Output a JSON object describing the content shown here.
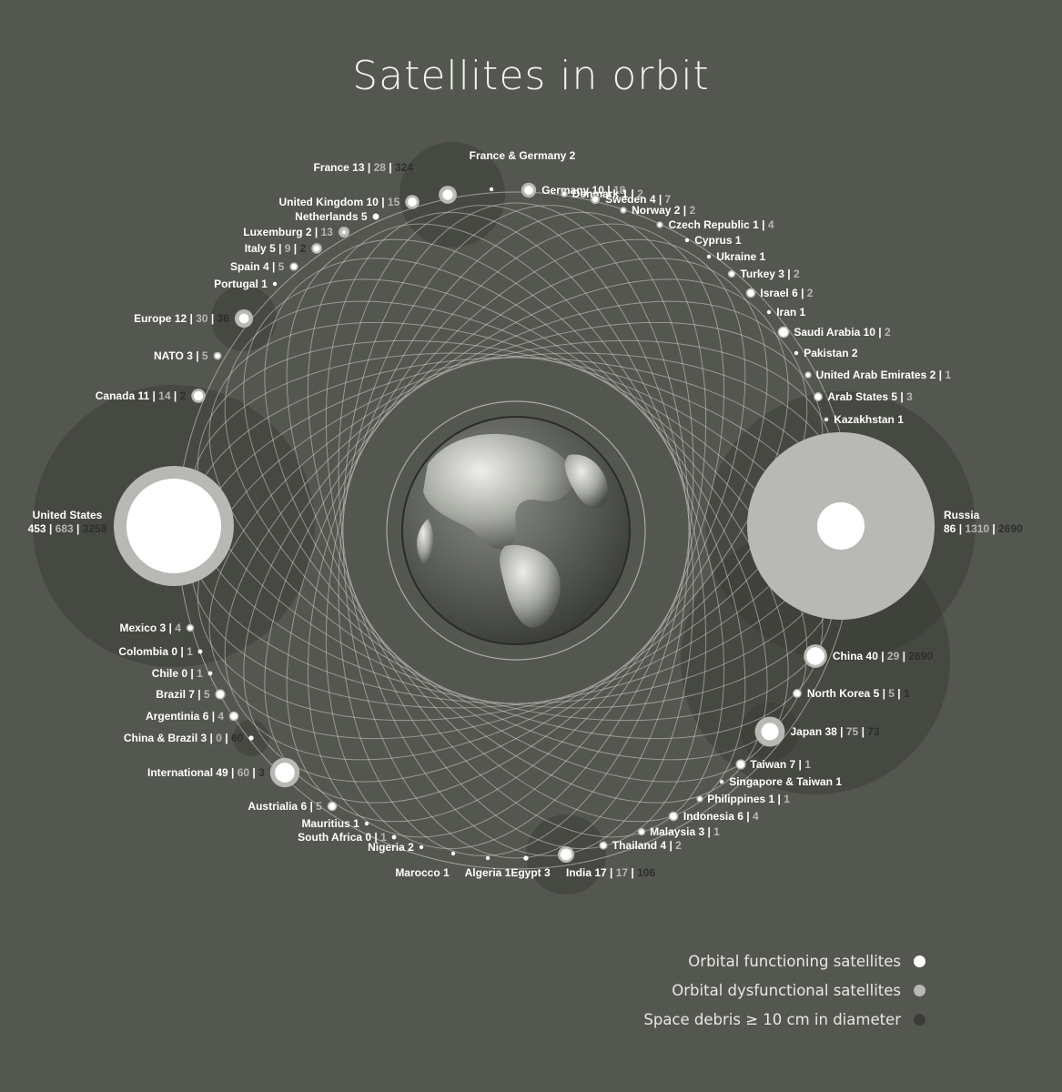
{
  "title": "Satellites in orbit",
  "legend": {
    "items": [
      {
        "label": "Orbital functioning satellites",
        "color": "#ffffff"
      },
      {
        "label": "Orbital dysfunctional satellites",
        "color": "#b8b8b4"
      },
      {
        "label": "Space debris ≥ 10 cm in diameter",
        "color": "#3a3c36"
      }
    ]
  },
  "chart_data": {
    "type": "bubble",
    "title": "Satellites in orbit",
    "center_icon": "globe-earth",
    "series": [
      {
        "name": "Orbital functioning satellites",
        "color": "#ffffff"
      },
      {
        "name": "Orbital dysfunctional satellites",
        "color": "#b8b8b4"
      },
      {
        "name": "Space debris ≥ 10 cm in diameter",
        "color": "#3a3c36"
      }
    ],
    "countries": [
      {
        "name": "France & Germany",
        "functioning": 2
      },
      {
        "name": "France",
        "functioning": 13,
        "dysfunctional": 28,
        "debris": 324
      },
      {
        "name": "Germany",
        "functioning": 10,
        "dysfunctional": 18
      },
      {
        "name": "Denmark",
        "functioning": 1,
        "dysfunctional": 2
      },
      {
        "name": "Sweden",
        "functioning": 4,
        "dysfunctional": 7
      },
      {
        "name": "Norway",
        "functioning": 2,
        "dysfunctional": 2
      },
      {
        "name": "Czech Republic",
        "functioning": 1,
        "dysfunctional": 4
      },
      {
        "name": "Cyprus",
        "functioning": 1
      },
      {
        "name": "Ukraine",
        "functioning": 1
      },
      {
        "name": "Turkey",
        "functioning": 3,
        "dysfunctional": 2
      },
      {
        "name": "Israel",
        "functioning": 6,
        "dysfunctional": 2
      },
      {
        "name": "Iran",
        "functioning": 1
      },
      {
        "name": "Saudi Arabia",
        "functioning": 10,
        "dysfunctional": 2
      },
      {
        "name": "Pakistan",
        "functioning": 2
      },
      {
        "name": "United Arab Emirates",
        "functioning": 2,
        "dysfunctional": 1
      },
      {
        "name": "Arab States",
        "functioning": 5,
        "dysfunctional": 3
      },
      {
        "name": "Kazakhstan",
        "functioning": 1
      },
      {
        "name": "Russia",
        "functioning": 86,
        "dysfunctional": 1310,
        "debris": 2690
      },
      {
        "name": "China",
        "functioning": 40,
        "dysfunctional": 29,
        "debris": 2690
      },
      {
        "name": "North Korea",
        "functioning": 5,
        "dysfunctional": 5,
        "debris": 1
      },
      {
        "name": "Japan",
        "functioning": 38,
        "dysfunctional": 75,
        "debris": 73
      },
      {
        "name": "Taiwan",
        "functioning": 7,
        "dysfunctional": 1
      },
      {
        "name": "Singapore & Taiwan",
        "functioning": 1
      },
      {
        "name": "Philippines",
        "functioning": 1,
        "dysfunctional": 1
      },
      {
        "name": "Indonesia",
        "functioning": 6,
        "dysfunctional": 4
      },
      {
        "name": "Malaysia",
        "functioning": 3,
        "dysfunctional": 1
      },
      {
        "name": "Thailand",
        "functioning": 4,
        "dysfunctional": 2
      },
      {
        "name": "India",
        "functioning": 17,
        "dysfunctional": 17,
        "debris": 106
      },
      {
        "name": "Egypt",
        "functioning": 3
      },
      {
        "name": "Algeria",
        "functioning": 1
      },
      {
        "name": "Marocco",
        "functioning": 1
      },
      {
        "name": "Nigeria",
        "functioning": 2
      },
      {
        "name": "South Africa",
        "functioning": 0,
        "dysfunctional": 1
      },
      {
        "name": "Mauritius",
        "functioning": 1
      },
      {
        "name": "Austrialia",
        "functioning": 6,
        "dysfunctional": 5
      },
      {
        "name": "International",
        "functioning": 49,
        "dysfunctional": 60,
        "debris": 3
      },
      {
        "name": "China & Brazil",
        "functioning": 3,
        "dysfunctional": 0,
        "debris": 60
      },
      {
        "name": "Argentinia",
        "functioning": 6,
        "dysfunctional": 4
      },
      {
        "name": "Brazil",
        "functioning": 7,
        "dysfunctional": 5
      },
      {
        "name": "Chile",
        "functioning": 0,
        "dysfunctional": 1
      },
      {
        "name": "Colombia",
        "functioning": 0,
        "dysfunctional": 1
      },
      {
        "name": "Mexico",
        "functioning": 3,
        "dysfunctional": 4
      },
      {
        "name": "United States",
        "functioning": 453,
        "dysfunctional": 683,
        "debris": 3258
      },
      {
        "name": "Canada",
        "functioning": 11,
        "dysfunctional": 14,
        "debris": 2
      },
      {
        "name": "NATO",
        "functioning": 3,
        "dysfunctional": 5
      },
      {
        "name": "Europe",
        "functioning": 12,
        "dysfunctional": 30,
        "debris": 36
      },
      {
        "name": "Portugal",
        "functioning": 1
      },
      {
        "name": "Spain",
        "functioning": 4,
        "dysfunctional": 5
      },
      {
        "name": "Italy",
        "functioning": 5,
        "dysfunctional": 9,
        "debris": 2
      },
      {
        "name": "Luxemburg",
        "functioning": 2,
        "dysfunctional": 13
      },
      {
        "name": "Netherlands",
        "functioning": 5
      },
      {
        "name": "United Kingdom",
        "functioning": 10,
        "dysfunctional": 15
      }
    ]
  }
}
